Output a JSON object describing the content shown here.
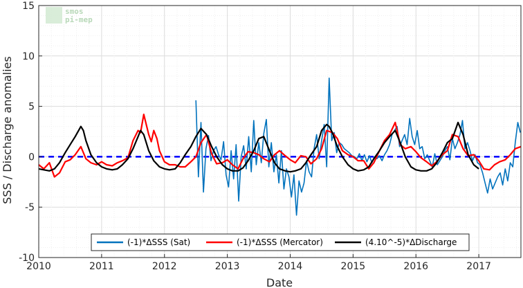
{
  "chart_data": {
    "type": "line",
    "xlabel": "Date",
    "ylabel": "SSS / Discharge anomalies",
    "xlim": [
      2010,
      2017.67
    ],
    "ylim": [
      -10,
      15
    ],
    "x_ticks": [
      "2010",
      "2011",
      "2012",
      "2013",
      "2014",
      "2015",
      "2016",
      "2017"
    ],
    "y_ticks": [
      "15",
      "10",
      "5",
      "0",
      "-5",
      "-10"
    ],
    "grid": true,
    "legend_position": "bottom-center",
    "reference_line": {
      "y": 0,
      "style": "dashed",
      "color": "#0000ff"
    },
    "logo_text": [
      "smos",
      "pi-mep"
    ],
    "series": [
      {
        "name": "(-1)*ΔSSS (Sat)",
        "color": "#0072bd",
        "x": [
          2012.5,
          2012.54,
          2012.58,
          2012.62,
          2012.66,
          2012.7,
          2012.74,
          2012.78,
          2012.82,
          2012.86,
          2012.9,
          2012.94,
          2012.98,
          2013.02,
          2013.06,
          2013.1,
          2013.14,
          2013.18,
          2013.22,
          2013.26,
          2013.3,
          2013.34,
          2013.38,
          2013.42,
          2013.46,
          2013.5,
          2013.54,
          2013.58,
          2013.62,
          2013.66,
          2013.7,
          2013.74,
          2013.78,
          2013.82,
          2013.86,
          2013.9,
          2013.94,
          2013.98,
          2014.02,
          2014.06,
          2014.1,
          2014.14,
          2014.18,
          2014.22,
          2014.26,
          2014.3,
          2014.34,
          2014.38,
          2014.42,
          2014.46,
          2014.5,
          2014.54,
          2014.58,
          2014.62,
          2014.66,
          2014.7,
          2014.74,
          2014.78,
          2014.82,
          2014.86,
          2014.9,
          2014.94,
          2014.98,
          2015.02,
          2015.06,
          2015.1,
          2015.14,
          2015.18,
          2015.22,
          2015.26,
          2015.3,
          2015.34,
          2015.38,
          2015.42,
          2015.46,
          2015.5,
          2015.54,
          2015.58,
          2015.62,
          2015.66,
          2015.7,
          2015.74,
          2015.78,
          2015.82,
          2015.86,
          2015.9,
          2015.94,
          2015.98,
          2016.02,
          2016.06,
          2016.1,
          2016.14,
          2016.18,
          2016.22,
          2016.26,
          2016.3,
          2016.34,
          2016.38,
          2016.42,
          2016.46,
          2016.5,
          2016.54,
          2016.58,
          2016.62,
          2016.66,
          2016.7,
          2016.74,
          2016.78,
          2016.82,
          2016.86,
          2016.9,
          2016.94,
          2016.98,
          2017.02,
          2017.06,
          2017.1,
          2017.14,
          2017.18,
          2017.22,
          2017.26,
          2017.3,
          2017.34,
          2017.38,
          2017.42,
          2017.46,
          2017.5,
          2017.54,
          2017.58,
          2017.62,
          2017.66
        ],
        "y": [
          5.6,
          -2.0,
          3.4,
          -3.5,
          0.8,
          2.1,
          -0.4,
          0.6,
          1.0,
          0.2,
          -0.3,
          1.5,
          -1.8,
          -3.0,
          0.6,
          -2.2,
          1.2,
          -4.4,
          0.0,
          1.1,
          -1.2,
          2.0,
          -1.5,
          3.6,
          -0.8,
          1.4,
          -0.6,
          2.3,
          3.7,
          -1.0,
          1.4,
          -1.5,
          0.2,
          -2.6,
          0.6,
          -3.2,
          -1.2,
          -2.0,
          -4.0,
          -1.8,
          -5.8,
          -2.4,
          -3.5,
          -2.6,
          -0.4,
          -1.5,
          -2.0,
          0.8,
          2.2,
          -0.2,
          1.6,
          3.2,
          -1.0,
          7.8,
          1.6,
          2.4,
          0.4,
          1.4,
          1.2,
          0.8,
          0.6,
          0.4,
          0.1,
          0.0,
          -0.2,
          0.3,
          -0.4,
          0.2,
          -0.5,
          0.1,
          -0.6,
          0.0,
          -0.2,
          0.1,
          -0.4,
          0.2,
          0.6,
          1.2,
          2.2,
          2.6,
          3.0,
          1.0,
          1.6,
          2.2,
          1.2,
          3.8,
          2.0,
          1.2,
          2.6,
          0.8,
          1.0,
          -0.2,
          0.2,
          -0.4,
          -1.0,
          0.3,
          -0.8,
          -0.4,
          0.0,
          0.6,
          1.0,
          -0.3,
          1.8,
          0.8,
          1.4,
          2.2,
          3.6,
          0.8,
          1.4,
          0.6,
          -0.4,
          0.2,
          -0.6,
          -0.8,
          -1.6,
          -2.6,
          -3.6,
          -2.2,
          -3.2,
          -2.6,
          -2.0,
          -1.6,
          -2.8,
          -1.2,
          -2.4,
          -0.6,
          -1.0,
          1.4,
          3.4,
          2.4
        ]
      },
      {
        "name": "(-1)*ΔSSS (Mercator)",
        "color": "#ff0000",
        "x": [
          2010.0,
          2010.08,
          2010.17,
          2010.25,
          2010.33,
          2010.42,
          2010.5,
          2010.58,
          2010.67,
          2010.75,
          2010.83,
          2010.92,
          2011.0,
          2011.08,
          2011.17,
          2011.25,
          2011.33,
          2011.42,
          2011.5,
          2011.58,
          2011.62,
          2011.67,
          2011.75,
          2011.79,
          2011.83,
          2011.88,
          2011.92,
          2012.0,
          2012.08,
          2012.17,
          2012.25,
          2012.33,
          2012.42,
          2012.5,
          2012.58,
          2012.67,
          2012.75,
          2012.83,
          2012.92,
          2013.0,
          2013.08,
          2013.17,
          2013.25,
          2013.33,
          2013.42,
          2013.5,
          2013.58,
          2013.67,
          2013.75,
          2013.83,
          2013.92,
          2014.0,
          2014.08,
          2014.17,
          2014.25,
          2014.33,
          2014.42,
          2014.5,
          2014.58,
          2014.67,
          2014.75,
          2014.83,
          2014.92,
          2015.0,
          2015.08,
          2015.17,
          2015.25,
          2015.33,
          2015.42,
          2015.5,
          2015.58,
          2015.67,
          2015.75,
          2015.83,
          2015.92,
          2016.0,
          2016.08,
          2016.17,
          2016.25,
          2016.33,
          2016.42,
          2016.5,
          2016.58,
          2016.67,
          2016.75,
          2016.83,
          2016.92,
          2017.0,
          2017.08,
          2017.17,
          2017.25,
          2017.33,
          2017.42,
          2017.5,
          2017.58,
          2017.67
        ],
        "y": [
          -0.8,
          -1.2,
          -0.6,
          -2.0,
          -1.6,
          -0.5,
          -0.3,
          0.2,
          1.0,
          -0.2,
          -0.6,
          -0.8,
          -0.5,
          -0.8,
          -0.9,
          -0.6,
          -0.4,
          -0.1,
          1.6,
          2.6,
          2.4,
          4.2,
          2.2,
          1.5,
          2.6,
          1.8,
          0.6,
          -0.5,
          -0.8,
          -0.8,
          -1.0,
          -1.0,
          -0.5,
          0.0,
          1.4,
          2.2,
          0.3,
          -0.7,
          -0.6,
          -0.3,
          -0.8,
          -1.2,
          -0.2,
          0.5,
          0.4,
          0.2,
          -0.2,
          -0.5,
          0.2,
          0.6,
          0.1,
          -0.3,
          -0.6,
          0.1,
          0.0,
          -0.7,
          -0.2,
          0.8,
          2.6,
          2.4,
          1.8,
          0.6,
          0.2,
          0.0,
          -0.4,
          -0.4,
          -1.2,
          -0.6,
          0.6,
          1.6,
          2.2,
          3.4,
          1.2,
          0.8,
          1.0,
          0.5,
          -0.1,
          -0.5,
          -0.9,
          -0.5,
          0.2,
          0.6,
          2.2,
          2.0,
          0.8,
          0.1,
          0.2,
          -0.4,
          -1.2,
          -1.3,
          -0.8,
          -0.5,
          -0.3,
          0.2,
          0.8,
          1.0
        ]
      },
      {
        "name": "(4.10^-5)*ΔDischarge",
        "color": "#000000",
        "x": [
          2010.0,
          2010.08,
          2010.17,
          2010.25,
          2010.33,
          2010.42,
          2010.5,
          2010.58,
          2010.67,
          2010.71,
          2010.75,
          2010.83,
          2010.92,
          2011.0,
          2011.08,
          2011.17,
          2011.25,
          2011.33,
          2011.42,
          2011.5,
          2011.58,
          2011.62,
          2011.67,
          2011.75,
          2011.83,
          2011.92,
          2012.0,
          2012.08,
          2012.17,
          2012.25,
          2012.33,
          2012.42,
          2012.5,
          2012.58,
          2012.67,
          2012.75,
          2012.83,
          2012.92,
          2013.0,
          2013.08,
          2013.17,
          2013.25,
          2013.33,
          2013.42,
          2013.5,
          2013.58,
          2013.67,
          2013.75,
          2013.83,
          2013.92,
          2014.0,
          2014.08,
          2014.17,
          2014.25,
          2014.33,
          2014.42,
          2014.5,
          2014.58,
          2014.62,
          2014.67,
          2014.75,
          2014.83,
          2014.92,
          2015.0,
          2015.08,
          2015.17,
          2015.25,
          2015.33,
          2015.42,
          2015.5,
          2015.58,
          2015.67,
          2015.75,
          2015.83,
          2015.92,
          2016.0,
          2016.08,
          2016.17,
          2016.25,
          2016.33,
          2016.42,
          2016.5,
          2016.58,
          2016.67,
          2016.75,
          2016.83,
          2016.92,
          2017.0
        ],
        "y": [
          -1.2,
          -1.3,
          -1.4,
          -1.2,
          -0.6,
          0.4,
          1.2,
          2.0,
          3.0,
          2.6,
          1.6,
          0.2,
          -0.6,
          -1.0,
          -1.2,
          -1.3,
          -1.2,
          -0.8,
          -0.2,
          0.8,
          2.0,
          2.6,
          2.2,
          0.6,
          -0.4,
          -1.0,
          -1.2,
          -1.3,
          -1.2,
          -0.6,
          0.2,
          1.0,
          2.0,
          2.8,
          2.2,
          1.0,
          0.0,
          -0.8,
          -1.2,
          -1.4,
          -1.4,
          -1.1,
          -0.4,
          0.6,
          1.8,
          2.0,
          0.6,
          -0.6,
          -1.2,
          -1.4,
          -1.5,
          -1.4,
          -1.2,
          -0.6,
          0.2,
          1.0,
          2.6,
          3.2,
          3.0,
          2.4,
          1.0,
          0.0,
          -0.8,
          -1.2,
          -1.4,
          -1.3,
          -1.0,
          -0.2,
          0.6,
          1.4,
          2.0,
          2.6,
          1.4,
          0.0,
          -1.0,
          -1.3,
          -1.4,
          -1.4,
          -1.2,
          -0.6,
          0.4,
          1.4,
          1.8,
          3.4,
          2.2,
          0.2,
          -0.8,
          -1.2
        ]
      }
    ]
  }
}
